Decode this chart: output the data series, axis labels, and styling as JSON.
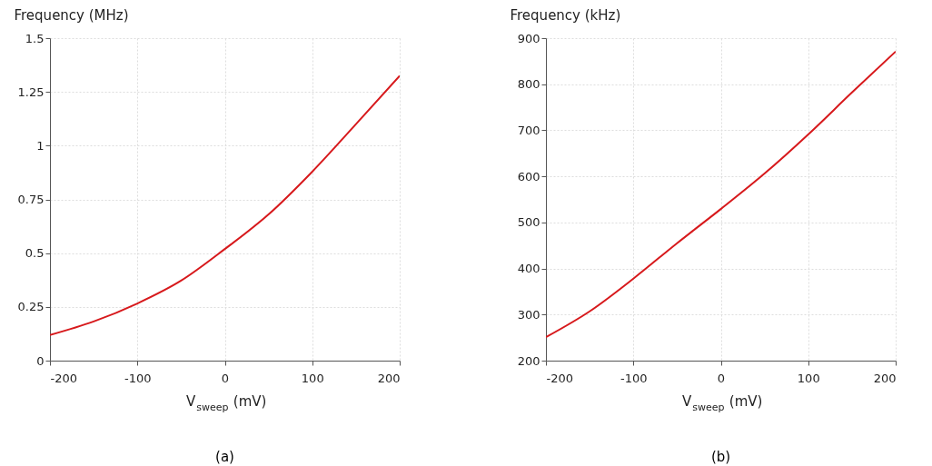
{
  "chart_data": [
    {
      "type": "line",
      "xlabel": "V$_{sweep}$ (mV)",
      "ylabel": "Frequency (MHz)",
      "annotations": [
        "(a)"
      ],
      "x": [
        -200,
        -150,
        -100,
        -50,
        0,
        50,
        100,
        150,
        200
      ],
      "series": [
        {
          "color": "#d7191c",
          "values": [
            0.119,
            0.182,
            0.266,
            0.372,
            0.519,
            0.68,
            0.879,
            1.1,
            1.325
          ]
        }
      ],
      "xlim": [
        -200,
        200
      ],
      "xticks": [
        -200,
        -100,
        0,
        100,
        200
      ],
      "ylim": [
        0,
        1.5
      ],
      "yticks": [
        0,
        0.25,
        0.5,
        0.75,
        1,
        1.25,
        1.5
      ],
      "grid": true
    },
    {
      "type": "line",
      "xlabel": "V$_{sweep}$ (mV)",
      "ylabel": "Frequency (kHz)",
      "annotations": [
        "(b)"
      ],
      "x": [
        -200,
        -150,
        -100,
        -50,
        0,
        50,
        100,
        150,
        200
      ],
      "series": [
        {
          "color": "#d7191c",
          "values": [
            251,
            307,
            378,
            455,
            529,
            606,
            691,
            782,
            871
          ]
        }
      ],
      "xlim": [
        -200,
        200
      ],
      "xticks": [
        -200,
        -100,
        0,
        100,
        200
      ],
      "ylim": [
        200,
        900
      ],
      "yticks": [
        200,
        300,
        400,
        500,
        600,
        700,
        800,
        900
      ],
      "grid": true
    }
  ]
}
